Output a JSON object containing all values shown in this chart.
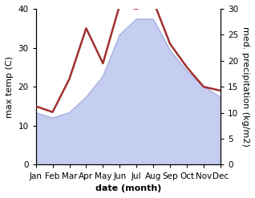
{
  "months": [
    "Jan",
    "Feb",
    "Mar",
    "Apr",
    "May",
    "Jun",
    "Jul",
    "Aug",
    "Sep",
    "Oct",
    "Nov",
    "Dec"
  ],
  "temp": [
    15,
    13.5,
    22,
    35,
    26,
    41,
    40,
    42,
    31,
    25,
    20,
    19
  ],
  "precip": [
    10,
    9,
    10,
    13,
    17,
    25,
    28,
    28,
    22,
    18,
    15,
    13
  ],
  "temp_color": "#a03030",
  "precip_fill_color": "#c5cdf0",
  "precip_edge_color": "#a0aae0",
  "ylim_left": [
    0,
    40
  ],
  "ylim_right": [
    0,
    30
  ],
  "xlabel": "date (month)",
  "ylabel_left": "max temp (C)",
  "ylabel_right": "med. precipitation (kg/m2)",
  "label_fontsize": 8,
  "tick_fontsize": 7.5
}
